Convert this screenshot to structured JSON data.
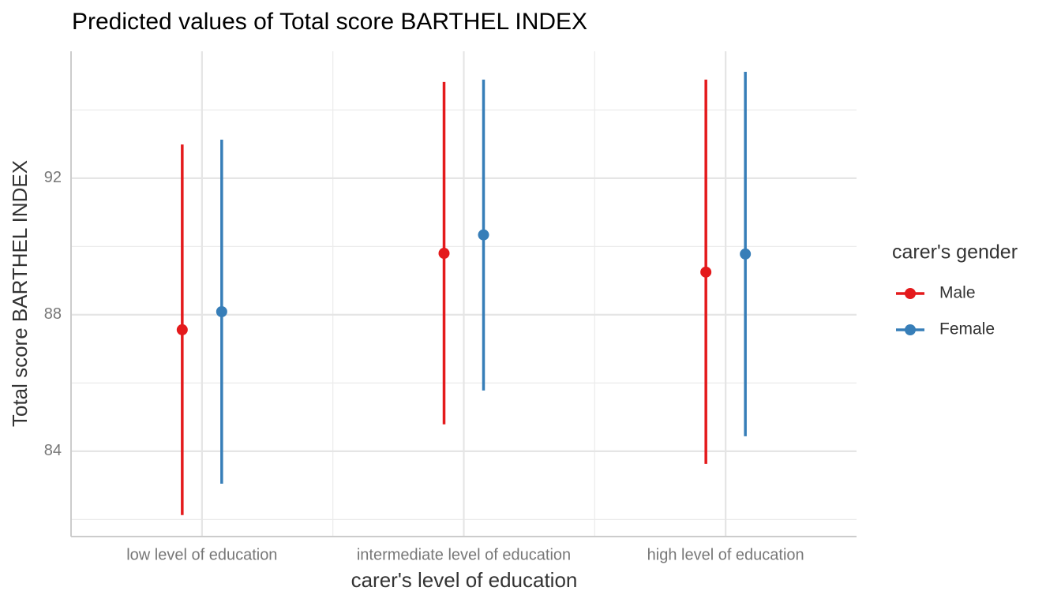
{
  "chart_data": {
    "type": "pointrange",
    "title": "Predicted values of Total score BARTHEL INDEX",
    "x_label": "carer's level of education",
    "y_label": "Total score BARTHEL INDEX",
    "legend_title": "carer's gender",
    "legend_position": "right",
    "categories": [
      "low level of education",
      "intermediate level of education",
      "high level of education"
    ],
    "series": [
      {
        "name": "Male",
        "color": "#e41a1c",
        "values": [
          87.56,
          89.8,
          89.25
        ],
        "lower": [
          82.13,
          84.79,
          83.63
        ],
        "upper": [
          92.99,
          94.82,
          94.89
        ]
      },
      {
        "name": "Female",
        "color": "#377eb8",
        "values": [
          88.09,
          90.34,
          89.78
        ],
        "lower": [
          83.05,
          85.78,
          84.44
        ],
        "upper": [
          93.13,
          94.89,
          95.12
        ]
      }
    ],
    "ylim": [
      81.5,
      95.72
    ],
    "yticks": [
      84,
      88,
      92
    ],
    "minor_yticks": [
      82,
      86,
      90,
      94
    ],
    "grid": true
  }
}
